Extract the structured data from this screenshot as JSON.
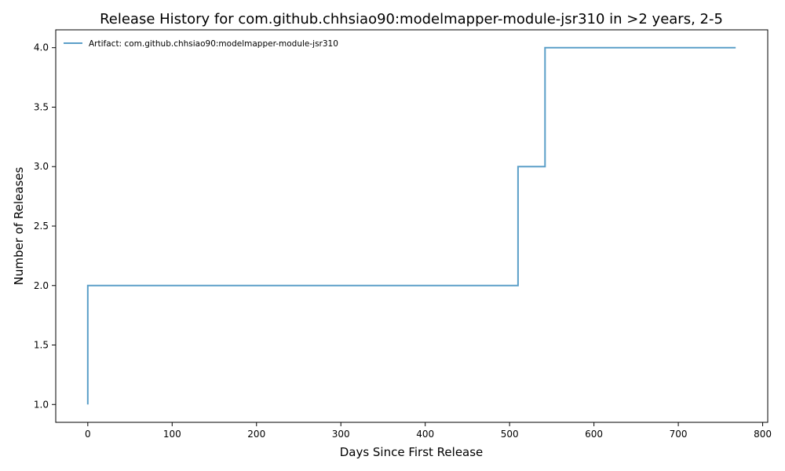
{
  "chart_data": {
    "type": "line",
    "step": "post",
    "title": "Release History for com.github.chhsiao90:modelmapper-module-jsr310 in >2 years, 2-5",
    "xlabel": "Days Since First Release",
    "ylabel": "Number of Releases",
    "xlim": [
      -38,
      806
    ],
    "ylim": [
      0.85,
      4.15
    ],
    "xticks": [
      0,
      100,
      200,
      300,
      400,
      500,
      600,
      700,
      800
    ],
    "yticks": [
      1.0,
      1.5,
      2.0,
      2.5,
      3.0,
      3.5,
      4.0
    ],
    "grid": false,
    "legend_position": "top-left",
    "series": [
      {
        "name": "Artifact: com.github.chhsiao90:modelmapper-module-jsr310",
        "color": "#5b9fc8",
        "x": [
          0,
          0,
          510,
          542,
          768
        ],
        "y": [
          1,
          2,
          3,
          4,
          4
        ]
      }
    ]
  }
}
